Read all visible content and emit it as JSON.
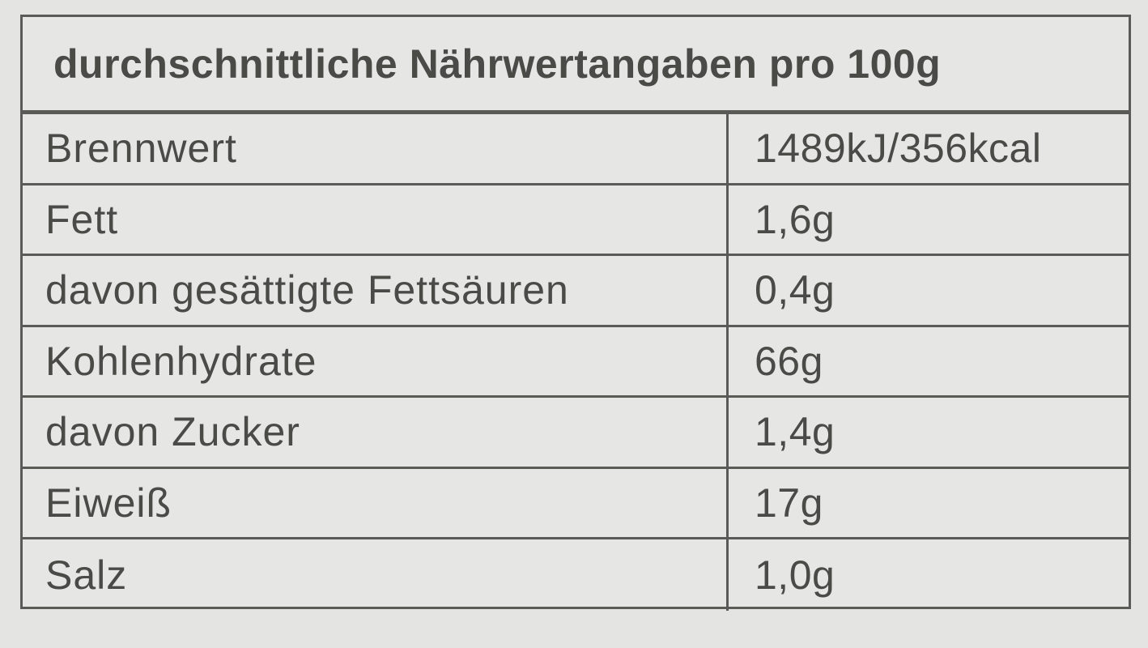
{
  "title": "durchschnittliche Nährwertangaben pro 100g",
  "rows": [
    {
      "label": "Brennwert",
      "value": "1489kJ/356kcal"
    },
    {
      "label": "Fett",
      "value": "1,6g"
    },
    {
      "label": "davon gesättigte Fettsäuren",
      "value": "0,4g"
    },
    {
      "label": "Kohlenhydrate",
      "value": "66g"
    },
    {
      "label": "davon Zucker",
      "value": "1,4g"
    },
    {
      "label": "Eiweiß",
      "value": "17g"
    },
    {
      "label": "Salz",
      "value": "1,0g"
    }
  ]
}
